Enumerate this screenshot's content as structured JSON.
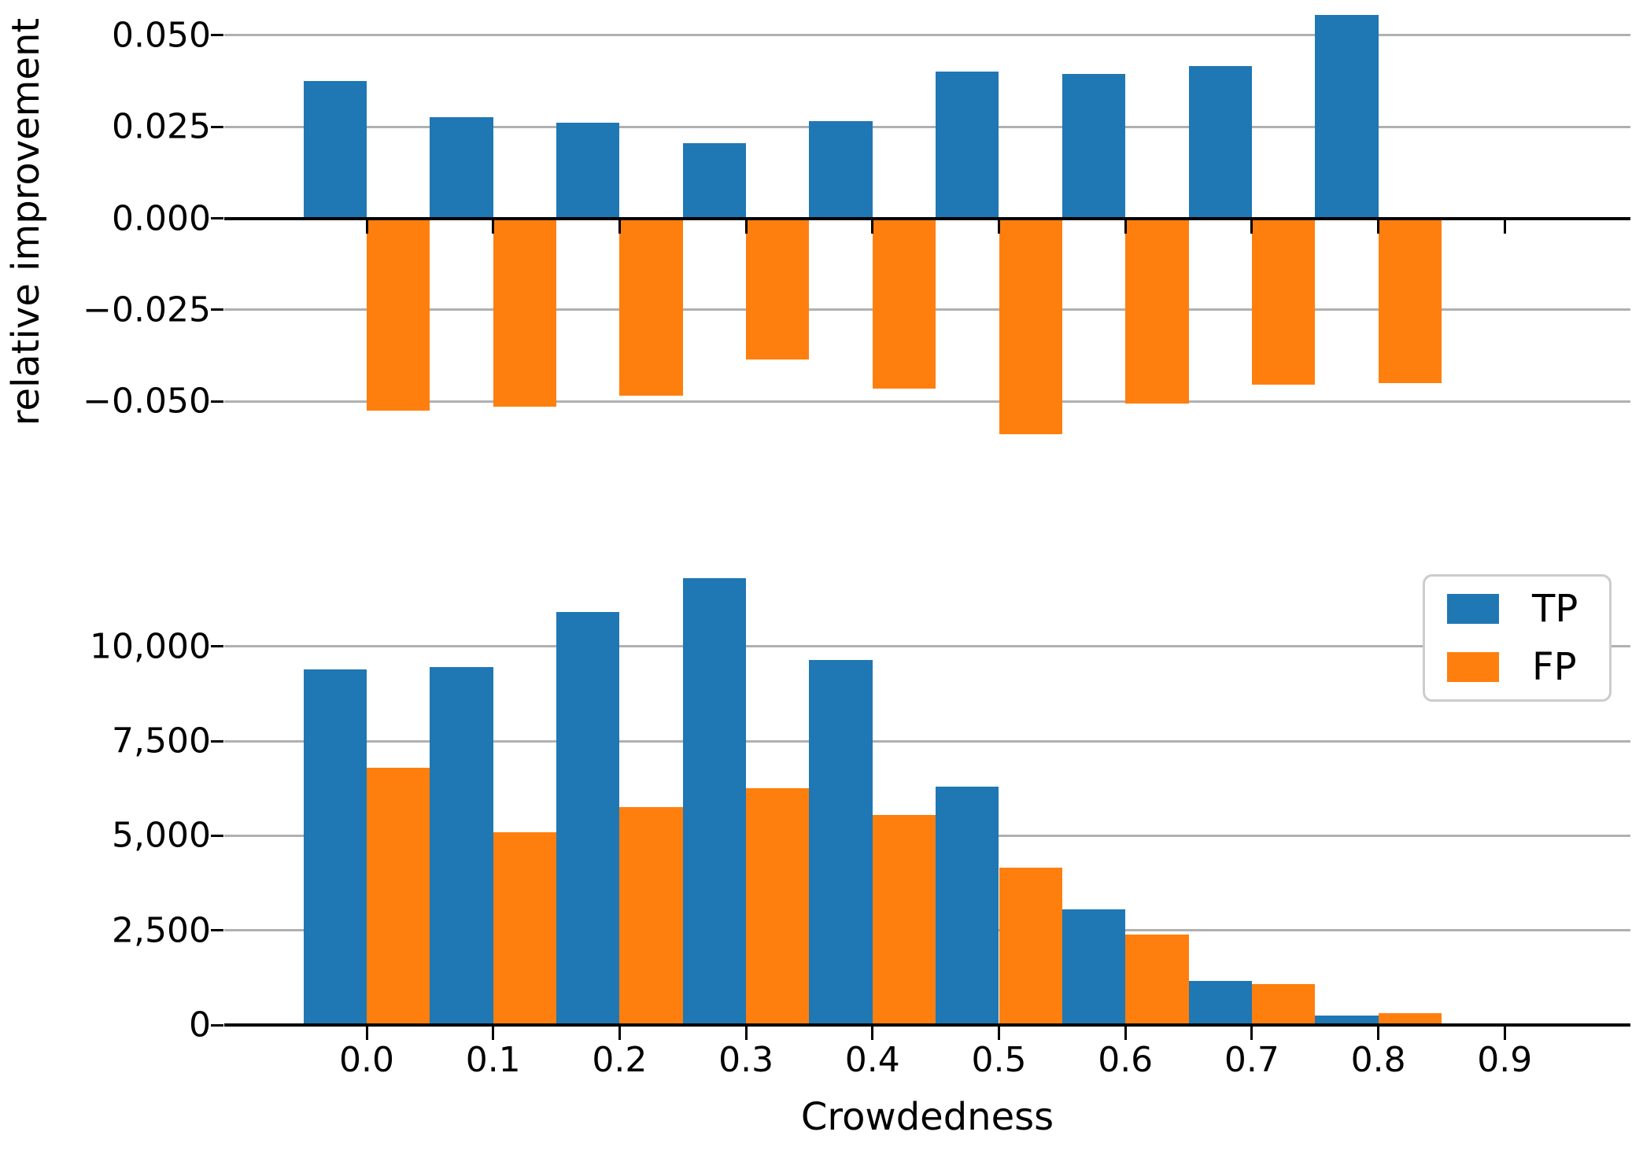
{
  "colors": {
    "tp": "#1f77b4",
    "fp": "#ff7f0e",
    "grid": "#b0b0b0",
    "axis": "#000000",
    "legend_border": "#cccccc",
    "text": "#000000",
    "background": "#ffffff"
  },
  "chart_data": [
    {
      "type": "bar",
      "subplot": "top",
      "title": "",
      "xlabel": "",
      "ylabel": "relative improvement",
      "categories": [
        "0.0",
        "0.1",
        "0.2",
        "0.3",
        "0.4",
        "0.5",
        "0.6",
        "0.7",
        "0.8"
      ],
      "x_axis_ticks": [
        "0.0",
        "0.1",
        "0.2",
        "0.3",
        "0.4",
        "0.5",
        "0.6",
        "0.7",
        "0.8",
        "0.9"
      ],
      "x_tick_labels_shown": false,
      "series": [
        {
          "name": "TP",
          "values": [
            0.0375,
            0.0275,
            0.026,
            0.0205,
            0.0265,
            0.04,
            0.0395,
            0.0415,
            0.0555
          ]
        },
        {
          "name": "FP",
          "values": [
            -0.0525,
            -0.0515,
            -0.0485,
            -0.0385,
            -0.0465,
            -0.059,
            -0.0505,
            -0.0455,
            -0.045
          ]
        }
      ],
      "yticks": [
        {
          "value": 0.05,
          "label": "0.050"
        },
        {
          "value": 0.025,
          "label": "0.025"
        },
        {
          "value": 0.0,
          "label": "0.000"
        },
        {
          "value": -0.025,
          "label": "−0.025"
        },
        {
          "value": -0.05,
          "label": "−0.050"
        }
      ],
      "ylim": [
        -0.066,
        0.058
      ],
      "grid": true,
      "legend_position": "none"
    },
    {
      "type": "bar",
      "subplot": "bottom",
      "title": "",
      "xlabel": "Crowdedness",
      "ylabel": "",
      "categories": [
        "0.0",
        "0.1",
        "0.2",
        "0.3",
        "0.4",
        "0.5",
        "0.6",
        "0.7",
        "0.8"
      ],
      "x_axis_ticks": [
        "0.0",
        "0.1",
        "0.2",
        "0.3",
        "0.4",
        "0.5",
        "0.6",
        "0.7",
        "0.8",
        "0.9"
      ],
      "x_tick_labels_shown": true,
      "series": [
        {
          "name": "TP",
          "values": [
            9400,
            9450,
            10900,
            11800,
            9650,
            6300,
            3050,
            1170,
            240
          ]
        },
        {
          "name": "FP",
          "values": [
            6800,
            5100,
            5750,
            6250,
            5550,
            4150,
            2400,
            1090,
            320
          ]
        }
      ],
      "yticks": [
        {
          "value": 10000,
          "label": "10,000"
        },
        {
          "value": 7500,
          "label": "7,500"
        },
        {
          "value": 5000,
          "label": "5,000"
        },
        {
          "value": 2500,
          "label": "2,500"
        },
        {
          "value": 0,
          "label": "0"
        }
      ],
      "ylim": [
        0,
        12400
      ],
      "grid": true,
      "legend_position": "upper right",
      "legend_entries": [
        "TP",
        "FP"
      ]
    }
  ]
}
